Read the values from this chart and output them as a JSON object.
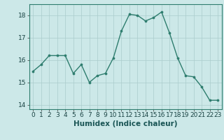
{
  "x": [
    0,
    1,
    2,
    3,
    4,
    5,
    6,
    7,
    8,
    9,
    10,
    11,
    12,
    13,
    14,
    15,
    16,
    17,
    18,
    19,
    20,
    21,
    22,
    23
  ],
  "y": [
    15.5,
    15.8,
    16.2,
    16.2,
    16.2,
    15.4,
    15.8,
    15.0,
    15.3,
    15.4,
    16.1,
    17.3,
    18.05,
    18.0,
    17.75,
    17.9,
    18.15,
    17.2,
    16.1,
    15.3,
    15.25,
    14.8,
    14.2,
    14.2
  ],
  "line_color": "#2e7d6e",
  "marker": "o",
  "marker_size": 2.2,
  "bg_color": "#cce8e8",
  "grid_color": "#aacccc",
  "xlabel": "Humidex (Indice chaleur)",
  "xlim": [
    -0.5,
    23.5
  ],
  "ylim": [
    13.8,
    18.5
  ],
  "yticks": [
    14,
    15,
    16,
    17,
    18
  ],
  "xticks": [
    0,
    1,
    2,
    3,
    4,
    5,
    6,
    7,
    8,
    9,
    10,
    11,
    12,
    13,
    14,
    15,
    16,
    17,
    18,
    19,
    20,
    21,
    22,
    23
  ],
  "xlabel_fontsize": 7.5,
  "tick_fontsize": 6.5,
  "linewidth": 1.0
}
